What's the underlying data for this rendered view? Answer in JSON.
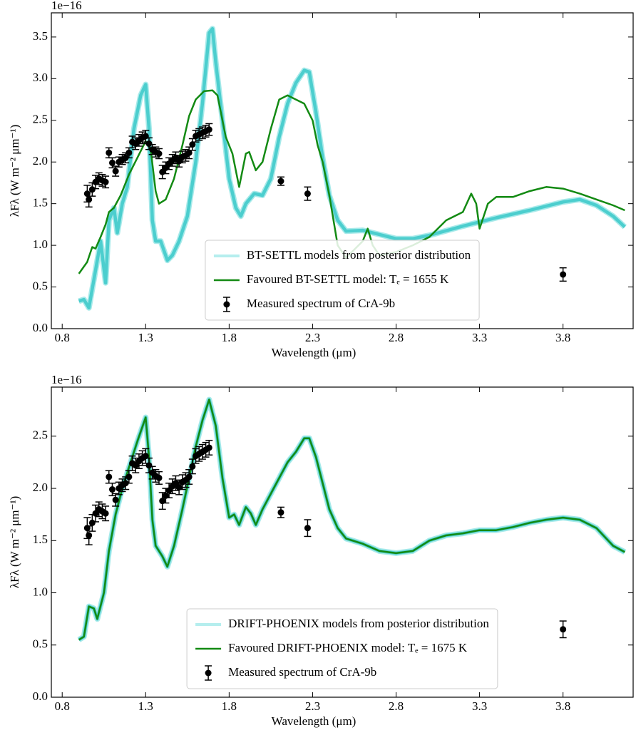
{
  "chart_data": [
    {
      "type": "line",
      "offset_text": "1e−16",
      "xlabel": "Wavelength (μm)",
      "ylabel": "λFλ (W m⁻² μm⁻¹)",
      "xlim": [
        0.735,
        4.22
      ],
      "ylim": [
        0,
        3.79
      ],
      "xticks": [
        0.8,
        1.3,
        1.8,
        2.3,
        2.8,
        3.3,
        3.8
      ],
      "yticks": [
        {
          "value": 0,
          "label": "0.0"
        },
        0.5,
        {
          "value": 1,
          "label": "1.0"
        },
        1.5,
        {
          "value": 2,
          "label": "2.0"
        },
        2.5,
        {
          "value": 3,
          "label": "3.0"
        },
        3.5
      ],
      "legend": "lower center",
      "series": [
        {
          "name": "BT-SETTL models from posterior distribution",
          "color": "#2ec4c4",
          "x": [
            0.9,
            0.93,
            0.96,
            1.0,
            1.03,
            1.06,
            1.08,
            1.11,
            1.13,
            1.16,
            1.19,
            1.23,
            1.27,
            1.3,
            1.32,
            1.34,
            1.36,
            1.39,
            1.43,
            1.46,
            1.5,
            1.55,
            1.6,
            1.64,
            1.68,
            1.7,
            1.72,
            1.76,
            1.8,
            1.84,
            1.87,
            1.9,
            1.95,
            2.0,
            2.05,
            2.1,
            2.15,
            2.2,
            2.25,
            2.28,
            2.32,
            2.36,
            2.4,
            2.45,
            2.5,
            2.6,
            2.7,
            2.8,
            2.9,
            3.0,
            3.2,
            3.4,
            3.6,
            3.8,
            3.9,
            4.0,
            4.1,
            4.17
          ],
          "values": [
            0.33,
            0.35,
            0.25,
            0.7,
            1.05,
            0.55,
            1.3,
            1.45,
            1.15,
            1.5,
            1.7,
            2.4,
            2.8,
            2.93,
            2.4,
            1.3,
            1.05,
            1.05,
            0.82,
            0.88,
            1.05,
            1.35,
            2.0,
            2.7,
            3.55,
            3.6,
            3.2,
            2.5,
            1.8,
            1.45,
            1.35,
            1.5,
            1.62,
            1.6,
            1.8,
            2.3,
            2.7,
            2.95,
            3.1,
            3.08,
            2.6,
            2.05,
            1.6,
            1.3,
            1.17,
            1.18,
            1.13,
            1.08,
            1.08,
            1.12,
            1.23,
            1.33,
            1.42,
            1.52,
            1.55,
            1.48,
            1.35,
            1.22
          ]
        },
        {
          "name": "Favoured BT-SETTL model: Tₑ = 1655 K",
          "color": "#138a13",
          "x": [
            0.9,
            0.95,
            0.98,
            1.0,
            1.03,
            1.06,
            1.08,
            1.11,
            1.15,
            1.2,
            1.25,
            1.3,
            1.33,
            1.36,
            1.38,
            1.42,
            1.47,
            1.52,
            1.56,
            1.6,
            1.65,
            1.7,
            1.73,
            1.78,
            1.82,
            1.86,
            1.9,
            1.92,
            1.96,
            2.0,
            2.05,
            2.1,
            2.15,
            2.2,
            2.25,
            2.3,
            2.33,
            2.36,
            2.4,
            2.45,
            2.5,
            2.55,
            2.6,
            2.63,
            2.66,
            2.7,
            2.8,
            2.9,
            3.0,
            3.1,
            3.2,
            3.25,
            3.28,
            3.3,
            3.35,
            3.4,
            3.5,
            3.6,
            3.7,
            3.8,
            3.9,
            4.0,
            4.1,
            4.17
          ],
          "values": [
            0.66,
            0.8,
            0.98,
            0.96,
            1.1,
            1.25,
            1.4,
            1.45,
            1.6,
            1.85,
            2.05,
            2.25,
            2.15,
            1.65,
            1.5,
            1.55,
            1.8,
            2.2,
            2.55,
            2.75,
            2.85,
            2.86,
            2.8,
            2.3,
            2.1,
            1.7,
            2.1,
            2.12,
            1.9,
            2.0,
            2.4,
            2.75,
            2.8,
            2.75,
            2.7,
            2.5,
            2.2,
            2.0,
            1.6,
            1.0,
            0.85,
            0.95,
            1.05,
            1.2,
            1.0,
            0.88,
            0.92,
            1.0,
            1.1,
            1.3,
            1.4,
            1.62,
            1.5,
            1.2,
            1.5,
            1.58,
            1.58,
            1.65,
            1.7,
            1.68,
            1.62,
            1.55,
            1.48,
            1.42
          ]
        },
        {
          "name": "Measured spectrum of CrA-9b",
          "color": "#000000",
          "x": [
            0.95,
            0.96,
            0.98,
            1.0,
            1.02,
            1.04,
            1.06,
            1.08,
            1.1,
            1.12,
            1.14,
            1.16,
            1.18,
            1.2,
            1.22,
            1.24,
            1.26,
            1.28,
            1.3,
            1.32,
            1.34,
            1.36,
            1.38,
            1.4,
            1.42,
            1.44,
            1.46,
            1.48,
            1.5,
            1.52,
            1.54,
            1.56,
            1.58,
            1.6,
            1.62,
            1.64,
            1.66,
            1.68,
            2.11,
            2.27,
            3.8
          ],
          "values": [
            1.62,
            1.55,
            1.67,
            1.76,
            1.8,
            1.78,
            1.76,
            2.11,
            1.99,
            1.89,
            2.0,
            2.03,
            2.05,
            2.11,
            2.24,
            2.22,
            2.26,
            2.29,
            2.31,
            2.22,
            2.15,
            2.12,
            2.1,
            1.88,
            1.93,
            1.98,
            2.02,
            2.05,
            2.01,
            2.06,
            2.08,
            2.11,
            2.21,
            2.31,
            2.33,
            2.35,
            2.37,
            2.39,
            1.77,
            1.62,
            0.65
          ],
          "errors": [
            0.1,
            0.09,
            0.08,
            0.08,
            0.07,
            0.07,
            0.07,
            0.06,
            0.06,
            0.06,
            0.06,
            0.06,
            0.06,
            0.06,
            0.07,
            0.07,
            0.07,
            0.07,
            0.07,
            0.07,
            0.06,
            0.06,
            0.06,
            0.08,
            0.07,
            0.07,
            0.07,
            0.07,
            0.07,
            0.07,
            0.07,
            0.07,
            0.07,
            0.07,
            0.07,
            0.07,
            0.07,
            0.07,
            0.05,
            0.08,
            0.08
          ]
        }
      ]
    },
    {
      "type": "line",
      "offset_text": "1e−16",
      "xlabel": "Wavelength (μm)",
      "ylabel": "λFλ (W m⁻² μm⁻¹)",
      "xlim": [
        0.735,
        4.22
      ],
      "ylim": [
        0,
        2.97
      ],
      "xticks": [
        0.8,
        1.3,
        1.8,
        2.3,
        2.8,
        3.3,
        3.8
      ],
      "yticks": [
        {
          "value": 0,
          "label": "0.0"
        },
        0.5,
        {
          "value": 1,
          "label": "1.0"
        },
        1.5,
        {
          "value": 2,
          "label": "2.0"
        },
        2.5
      ],
      "legend": "lower center",
      "series": [
        {
          "name": "DRIFT-PHOENIX models from posterior distribution",
          "color": "#2ec4c4",
          "x": [
            0.9,
            0.93,
            0.96,
            0.99,
            1.01,
            1.05,
            1.08,
            1.12,
            1.16,
            1.2,
            1.25,
            1.3,
            1.32,
            1.34,
            1.36,
            1.4,
            1.43,
            1.47,
            1.52,
            1.56,
            1.6,
            1.64,
            1.68,
            1.72,
            1.76,
            1.8,
            1.83,
            1.86,
            1.9,
            1.93,
            1.96,
            2.0,
            2.05,
            2.1,
            2.15,
            2.2,
            2.25,
            2.28,
            2.32,
            2.36,
            2.4,
            2.45,
            2.5,
            2.6,
            2.7,
            2.8,
            2.9,
            3.0,
            3.1,
            3.2,
            3.3,
            3.4,
            3.5,
            3.6,
            3.7,
            3.8,
            3.9,
            4.0,
            4.1,
            4.17
          ],
          "values": [
            0.55,
            0.58,
            0.87,
            0.85,
            0.75,
            1.0,
            1.4,
            1.75,
            2.0,
            2.2,
            2.45,
            2.68,
            2.3,
            1.7,
            1.45,
            1.35,
            1.25,
            1.45,
            1.8,
            2.1,
            2.4,
            2.65,
            2.85,
            2.6,
            2.1,
            1.72,
            1.75,
            1.65,
            1.82,
            1.76,
            1.65,
            1.8,
            1.95,
            2.1,
            2.25,
            2.35,
            2.48,
            2.48,
            2.3,
            2.05,
            1.8,
            1.62,
            1.52,
            1.47,
            1.4,
            1.38,
            1.4,
            1.5,
            1.55,
            1.57,
            1.6,
            1.6,
            1.63,
            1.67,
            1.7,
            1.72,
            1.7,
            1.62,
            1.45,
            1.39
          ]
        },
        {
          "name": "Favoured DRIFT-PHOENIX model: Tₑ = 1675 K",
          "color": "#138a13",
          "x": [
            0.9,
            0.93,
            0.96,
            0.99,
            1.01,
            1.05,
            1.08,
            1.12,
            1.16,
            1.2,
            1.25,
            1.3,
            1.32,
            1.34,
            1.36,
            1.4,
            1.43,
            1.47,
            1.52,
            1.56,
            1.6,
            1.64,
            1.68,
            1.72,
            1.76,
            1.8,
            1.83,
            1.86,
            1.9,
            1.93,
            1.96,
            2.0,
            2.05,
            2.1,
            2.15,
            2.2,
            2.25,
            2.28,
            2.32,
            2.36,
            2.4,
            2.45,
            2.5,
            2.6,
            2.7,
            2.8,
            2.9,
            3.0,
            3.1,
            3.2,
            3.3,
            3.4,
            3.5,
            3.6,
            3.7,
            3.8,
            3.9,
            4.0,
            4.1,
            4.17
          ],
          "values": [
            0.55,
            0.58,
            0.87,
            0.85,
            0.75,
            1.0,
            1.4,
            1.75,
            2.0,
            2.2,
            2.45,
            2.68,
            2.3,
            1.7,
            1.45,
            1.35,
            1.25,
            1.45,
            1.8,
            2.1,
            2.4,
            2.65,
            2.85,
            2.6,
            2.1,
            1.72,
            1.75,
            1.65,
            1.82,
            1.76,
            1.65,
            1.8,
            1.95,
            2.1,
            2.25,
            2.35,
            2.48,
            2.48,
            2.3,
            2.05,
            1.8,
            1.62,
            1.52,
            1.47,
            1.4,
            1.38,
            1.4,
            1.5,
            1.55,
            1.57,
            1.6,
            1.6,
            1.63,
            1.67,
            1.7,
            1.72,
            1.7,
            1.62,
            1.45,
            1.39
          ]
        },
        {
          "name": "Measured spectrum of CrA-9b",
          "color": "#000000",
          "x": [
            0.95,
            0.96,
            0.98,
            1.0,
            1.02,
            1.04,
            1.06,
            1.08,
            1.1,
            1.12,
            1.14,
            1.16,
            1.18,
            1.2,
            1.22,
            1.24,
            1.26,
            1.28,
            1.3,
            1.32,
            1.34,
            1.36,
            1.38,
            1.4,
            1.42,
            1.44,
            1.46,
            1.48,
            1.5,
            1.52,
            1.54,
            1.56,
            1.58,
            1.6,
            1.62,
            1.64,
            1.66,
            1.68,
            2.11,
            2.27,
            3.8
          ],
          "values": [
            1.62,
            1.55,
            1.67,
            1.76,
            1.8,
            1.78,
            1.76,
            2.11,
            1.99,
            1.89,
            2.0,
            2.03,
            2.05,
            2.11,
            2.24,
            2.22,
            2.26,
            2.29,
            2.31,
            2.22,
            2.15,
            2.12,
            2.1,
            1.88,
            1.93,
            1.98,
            2.02,
            2.05,
            2.01,
            2.06,
            2.08,
            2.11,
            2.21,
            2.31,
            2.33,
            2.35,
            2.37,
            2.39,
            1.77,
            1.62,
            0.65
          ],
          "errors": [
            0.1,
            0.09,
            0.08,
            0.08,
            0.07,
            0.07,
            0.07,
            0.06,
            0.06,
            0.06,
            0.06,
            0.06,
            0.06,
            0.06,
            0.07,
            0.07,
            0.07,
            0.07,
            0.07,
            0.07,
            0.06,
            0.06,
            0.06,
            0.08,
            0.07,
            0.07,
            0.07,
            0.07,
            0.07,
            0.07,
            0.07,
            0.07,
            0.07,
            0.07,
            0.07,
            0.07,
            0.07,
            0.07,
            0.05,
            0.08,
            0.08
          ]
        }
      ]
    }
  ]
}
